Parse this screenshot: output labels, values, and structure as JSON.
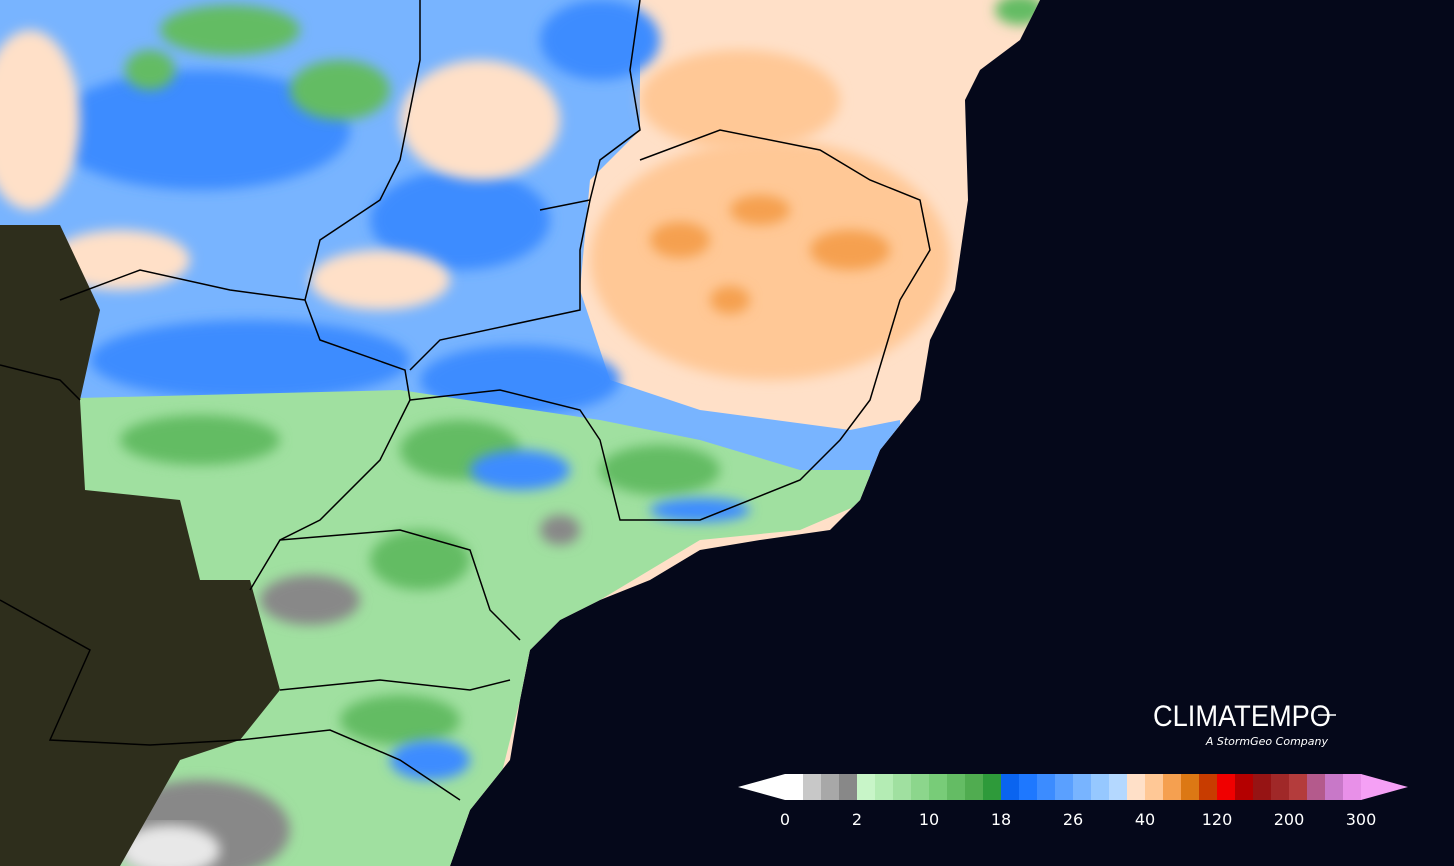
{
  "logo": {
    "name": "CLIMATEMPO",
    "tagline": "A StormGeo Company"
  },
  "colorbar": {
    "ticks": [
      0,
      2,
      10,
      18,
      26,
      40,
      120,
      200,
      300
    ],
    "under_color": "#ffffff",
    "over_color": "#f5a0f5",
    "colors": [
      "#ffffff",
      "#c8c8c8",
      "#a8a8a8",
      "#888888",
      "#c8f5c8",
      "#b4ecb4",
      "#a0e0a0",
      "#8cd68c",
      "#78cc78",
      "#64bc64",
      "#50ac50",
      "#2e9a3a",
      "#0a64f0",
      "#1e78ff",
      "#3c8cff",
      "#5aa0ff",
      "#78b4ff",
      "#96c8ff",
      "#b4d8ff",
      "#ffe0c8",
      "#ffc896",
      "#f5a050",
      "#dc7814",
      "#c83c00",
      "#f00000",
      "#b40000",
      "#961414",
      "#a02828",
      "#b43c3c",
      "#b45a8c",
      "#c878c8",
      "#e890e8"
    ]
  }
}
